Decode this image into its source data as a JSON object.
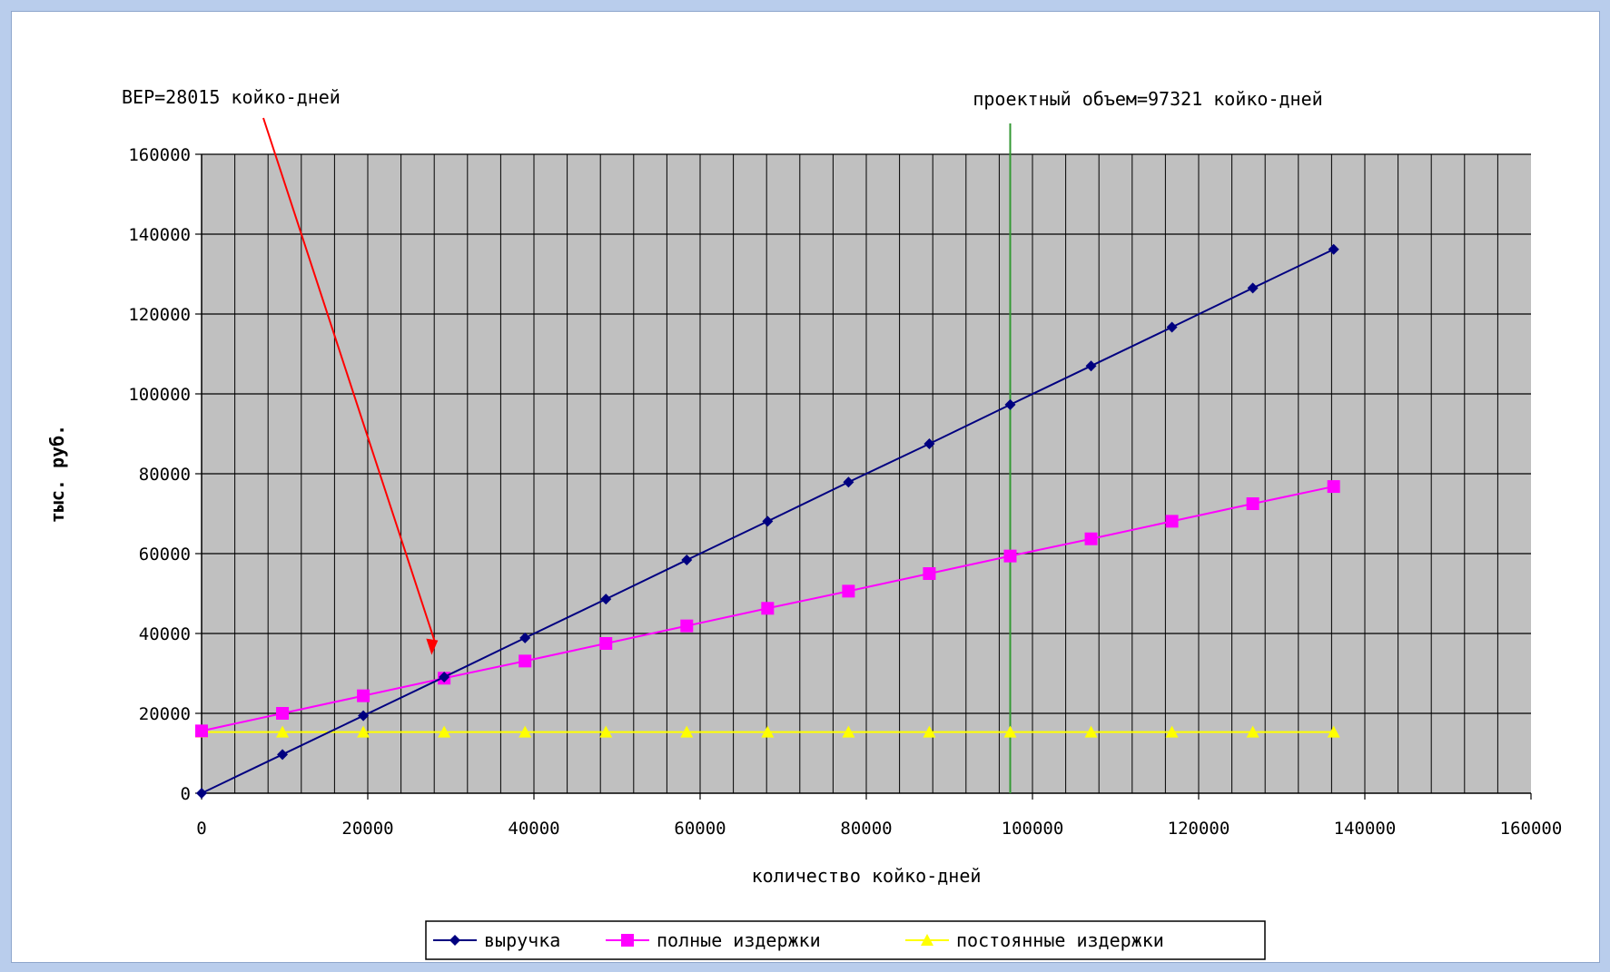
{
  "chart_data": {
    "type": "line",
    "xlabel": "количество койко-дней",
    "ylabel": "тыс. руб.",
    "xlim": [
      0,
      160000
    ],
    "ylim": [
      0,
      160000
    ],
    "x_ticks": [
      0,
      20000,
      40000,
      60000,
      80000,
      100000,
      120000,
      140000,
      160000
    ],
    "y_ticks": [
      0,
      20000,
      40000,
      60000,
      80000,
      100000,
      120000,
      140000,
      160000
    ],
    "x_tick_labels": [
      "0",
      "20000",
      "40000",
      "60000",
      "80000",
      "100000",
      "120000",
      "140000",
      "160000"
    ],
    "y_tick_labels": [
      "0",
      "20000",
      "40000",
      "60000",
      "80000",
      "100000",
      "120000",
      "140000",
      "160000"
    ],
    "grid": true,
    "legend_position": "bottom",
    "x": [
      0,
      9732,
      19464,
      29196,
      38928,
      48660,
      58392,
      68124,
      77856,
      87588,
      97321,
      107053,
      116785,
      126517,
      136249
    ],
    "series": [
      {
        "name": "выручка",
        "color": "#000080",
        "marker": "diamond",
        "values": [
          0,
          9700,
          19400,
          29100,
          38900,
          48600,
          58400,
          68100,
          77900,
          87500,
          97300,
          107000,
          116700,
          126500,
          136200
        ]
      },
      {
        "name": "полные издержки",
        "color": "#ff00ff",
        "marker": "square",
        "values": [
          15600,
          20000,
          24400,
          28800,
          33100,
          37500,
          41900,
          46300,
          50600,
          55000,
          59400,
          63700,
          68100,
          72500,
          76800
        ]
      },
      {
        "name": "постоянные издержки",
        "color": "#ffff00",
        "marker": "triangle",
        "values": [
          15300,
          15300,
          15300,
          15300,
          15300,
          15300,
          15300,
          15300,
          15300,
          15300,
          15300,
          15300,
          15300,
          15300,
          15300
        ]
      }
    ],
    "annotations": [
      {
        "text": "BEP=28015 койко-дней",
        "color": "#ff0000",
        "x": 28015,
        "y": 36000
      },
      {
        "text": "проектный объем=97321 койко-дней",
        "color": "#339933",
        "x": 97321
      }
    ]
  }
}
